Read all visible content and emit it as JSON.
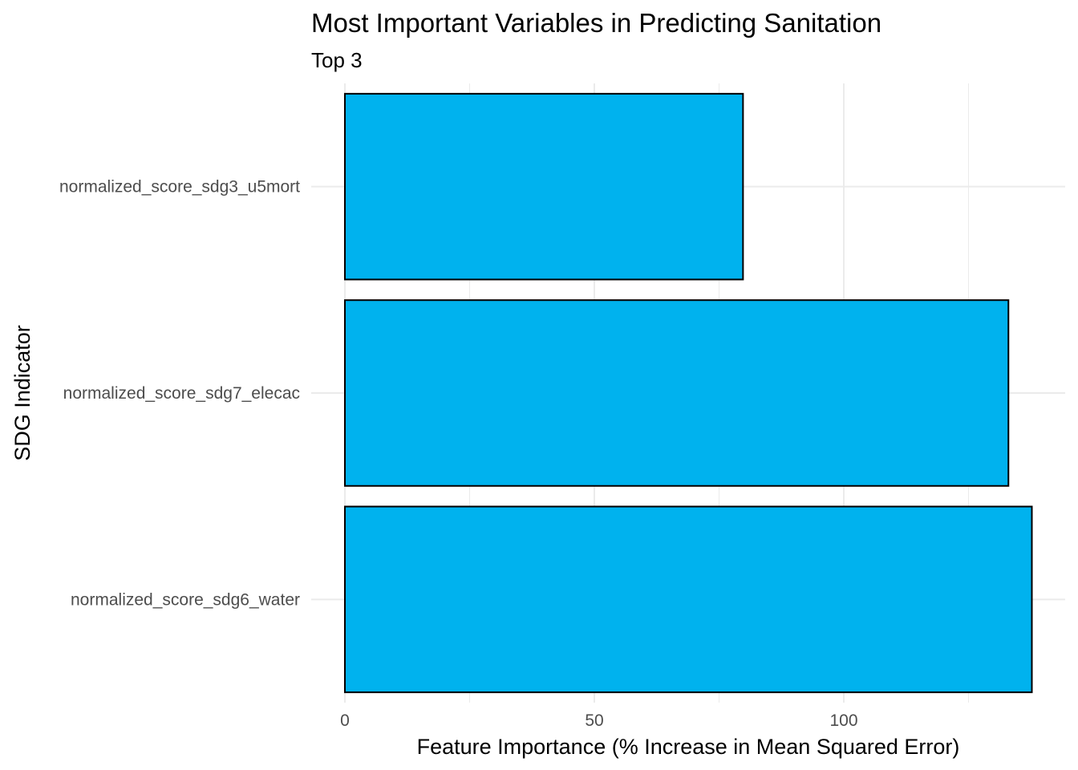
{
  "chart_data": {
    "type": "bar",
    "orientation": "horizontal",
    "title": "Most Important Variables in Predicting Sanitation",
    "subtitle": "Top 3",
    "xlabel": "Feature Importance (% Increase in Mean Squared Error)",
    "ylabel": "SDG Indicator",
    "categories": [
      "normalized_score_sdg6_water",
      "normalized_score_sdg7_elecac",
      "normalized_score_sdg3_u5mort"
    ],
    "values": [
      137.7,
      133.0,
      79.8
    ],
    "xlim": [
      0,
      138
    ],
    "x_ticks": [
      0,
      50,
      100
    ],
    "grid": true,
    "legend": "none",
    "colors": {
      "bar_fill": "#00B2EE",
      "bar_stroke": "#000000",
      "grid": "#EBEBEB",
      "tick_text": "#4D4D4D"
    }
  }
}
